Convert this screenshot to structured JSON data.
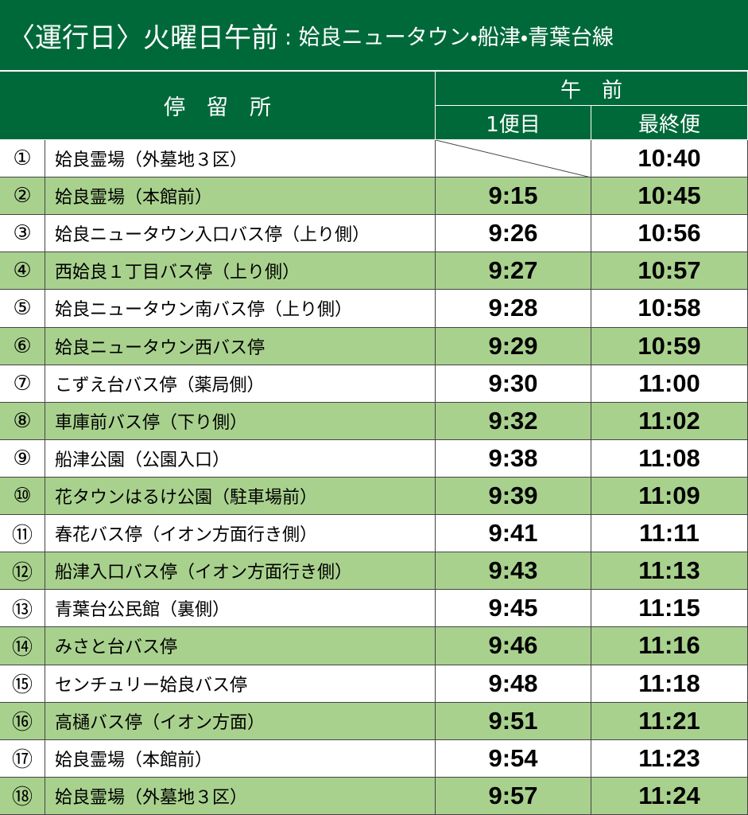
{
  "header": {
    "title": "〈運行日〉火曜日午前",
    "subtitle": ": 姶良ニュータウン・船津・青葉台線"
  },
  "table": {
    "columns": {
      "stop": "停　留　所",
      "period": "午　前",
      "first": "1便目",
      "last": "最終便"
    },
    "rows": [
      [
        "①",
        "姶良霊場（外墓地３区）",
        null,
        "10:40"
      ],
      [
        "②",
        "姶良霊場（本館前）",
        "9:15",
        "10:45"
      ],
      [
        "③",
        "姶良ニュータウン入口バス停（上り側）",
        "9:26",
        "10:56"
      ],
      [
        "④",
        "西姶良１丁目バス停（上り側）",
        "9:27",
        "10:57"
      ],
      [
        "⑤",
        "姶良ニュータウン南バス停（上り側）",
        "9:28",
        "10:58"
      ],
      [
        "⑥",
        "姶良ニュータウン西バス停",
        "9:29",
        "10:59"
      ],
      [
        "⑦",
        "こずえ台バス停（薬局側）",
        "9:30",
        "11:00"
      ],
      [
        "⑧",
        "車庫前バス停（下り側）",
        "9:32",
        "11:02"
      ],
      [
        "⑨",
        "船津公園（公園入口）",
        "9:38",
        "11:08"
      ],
      [
        "⑩",
        "花タウンはるけ公園（駐車場前）",
        "9:39",
        "11:09"
      ],
      [
        "⑪",
        "春花バス停（イオン方面行き側）",
        "9:41",
        "11:11"
      ],
      [
        "⑫",
        "船津入口バス停（イオン方面行き側）",
        "9:43",
        "11:13"
      ],
      [
        "⑬",
        "青葉台公民館（裏側）",
        "9:45",
        "11:15"
      ],
      [
        "⑭",
        "みさと台バス停",
        "9:46",
        "11:16"
      ],
      [
        "⑮",
        "センチュリー姶良バス停",
        "9:48",
        "11:18"
      ],
      [
        "⑯",
        "高樋バス停（イオン方面）",
        "9:51",
        "11:21"
      ],
      [
        "⑰",
        "姶良霊場（本館前）",
        "9:54",
        "11:23"
      ],
      [
        "⑱",
        "姶良霊場（外墓地３区）",
        "9:57",
        "11:24"
      ]
    ]
  }
}
